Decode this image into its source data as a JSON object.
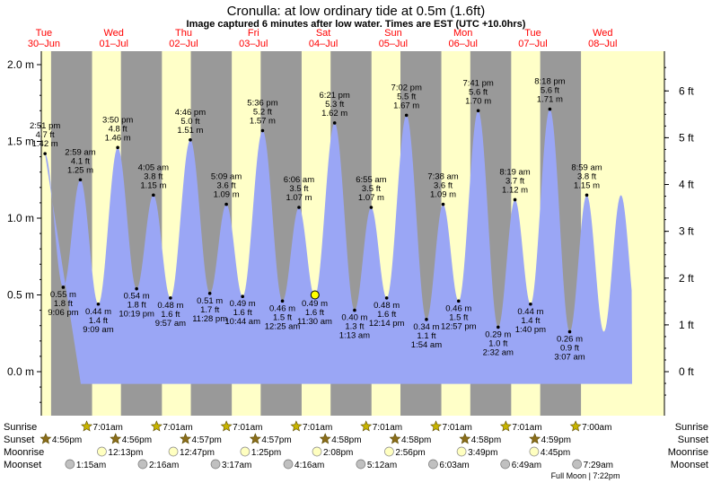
{
  "header": {
    "title": "Cronulla: at low  ordinary tide at 0.5m (1.6ft)",
    "subtitle": "Image captured 6 minutes after low water. Times are EST (UTC +10.0hrs)"
  },
  "days": [
    {
      "dow": "Tue",
      "date": "30–Jun"
    },
    {
      "dow": "Wed",
      "date": "01–Jul"
    },
    {
      "dow": "Thu",
      "date": "02–Jul"
    },
    {
      "dow": "Fri",
      "date": "03–Jul"
    },
    {
      "dow": "Sat",
      "date": "04–Jul"
    },
    {
      "dow": "Sun",
      "date": "05–Jul"
    },
    {
      "dow": "Mon",
      "date": "06–Jul"
    },
    {
      "dow": "Tue",
      "date": "07–Jul"
    },
    {
      "dow": "Wed",
      "date": "08–Jul"
    }
  ],
  "colors": {
    "day": "#ffffc8",
    "night": "#999999",
    "water": "#9aa6f5",
    "day_label": "#ff0000",
    "sun_star": "#c8b400",
    "sunset_star": "#8b6d1a",
    "moonrise": "#ffffc0",
    "moonset": "#c0c0c0",
    "marker": "#ffff00"
  },
  "chart_data": {
    "type": "area",
    "title": "Cronulla: at low  ordinary tide at 0.5m (1.6ft)",
    "xlabel": "",
    "ylabel": "",
    "y_left_unit": "m",
    "y_right_unit": "ft",
    "ylim_m": [
      -0.3,
      2.1
    ],
    "y_left_ticks": [
      "2.0 m",
      "1.5 m",
      "1.0 m",
      "0.5 m",
      "0.0 m"
    ],
    "y_left_values": [
      2.0,
      1.5,
      1.0,
      0.5,
      0.0
    ],
    "y_right_ticks": [
      "6 ft",
      "5 ft",
      "4 ft",
      "3 ft",
      "2 ft",
      "1 ft",
      "0 ft"
    ],
    "y_right_values": [
      6,
      5,
      4,
      3,
      2,
      1,
      0
    ],
    "tides": [
      {
        "day": 0,
        "time": "2:51 pm",
        "h": 1.42,
        "m": "1.42 m",
        "ft": "4.7 ft",
        "type": "high"
      },
      {
        "day": 0,
        "time": "9:06 pm",
        "h": 0.55,
        "m": "0.55 m",
        "ft": "1.8 ft",
        "type": "low"
      },
      {
        "day": 1,
        "time": "2:59 am",
        "h": 1.25,
        "m": "1.25 m",
        "ft": "4.1 ft",
        "type": "high"
      },
      {
        "day": 1,
        "time": "9:09 am",
        "h": 0.44,
        "m": "0.44 m",
        "ft": "1.4 ft",
        "type": "low"
      },
      {
        "day": 1,
        "time": "3:50 pm",
        "h": 1.46,
        "m": "1.46 m",
        "ft": "4.8 ft",
        "type": "high"
      },
      {
        "day": 1,
        "time": "10:19 pm",
        "h": 0.54,
        "m": "0.54 m",
        "ft": "1.8 ft",
        "type": "low"
      },
      {
        "day": 2,
        "time": "4:05 am",
        "h": 1.15,
        "m": "1.15 m",
        "ft": "3.8 ft",
        "type": "high"
      },
      {
        "day": 2,
        "time": "9:57 am",
        "h": 0.48,
        "m": "0.48 m",
        "ft": "1.6 ft",
        "type": "low"
      },
      {
        "day": 2,
        "time": "4:46 pm",
        "h": 1.51,
        "m": "1.51 m",
        "ft": "5.0 ft",
        "type": "high"
      },
      {
        "day": 2,
        "time": "11:28 pm",
        "h": 0.51,
        "m": "0.51 m",
        "ft": "1.7 ft",
        "type": "low"
      },
      {
        "day": 3,
        "time": "5:09 am",
        "h": 1.09,
        "m": "1.09 m",
        "ft": "3.6 ft",
        "type": "high"
      },
      {
        "day": 3,
        "time": "10:44 am",
        "h": 0.49,
        "m": "0.49 m",
        "ft": "1.6 ft",
        "type": "low"
      },
      {
        "day": 3,
        "time": "5:36 pm",
        "h": 1.57,
        "m": "1.57 m",
        "ft": "5.2 ft",
        "type": "high"
      },
      {
        "day": 4,
        "time": "12:25 am",
        "h": 0.46,
        "m": "0.46 m",
        "ft": "1.5 ft",
        "type": "low"
      },
      {
        "day": 4,
        "time": "6:06 am",
        "h": 1.07,
        "m": "1.07 m",
        "ft": "3.5 ft",
        "type": "high"
      },
      {
        "day": 4,
        "time": "11:30 am",
        "h": 0.49,
        "m": "0.49 m",
        "ft": "1.6 ft",
        "type": "low"
      },
      {
        "day": 4,
        "time": "6:21 pm",
        "h": 1.62,
        "m": "1.62 m",
        "ft": "5.3 ft",
        "type": "high"
      },
      {
        "day": 5,
        "time": "1:13 am",
        "h": 0.4,
        "m": "0.40 m",
        "ft": "1.3 ft",
        "type": "low"
      },
      {
        "day": 5,
        "time": "6:55 am",
        "h": 1.07,
        "m": "1.07 m",
        "ft": "3.5 ft",
        "type": "high"
      },
      {
        "day": 5,
        "time": "12:14 pm",
        "h": 0.48,
        "m": "0.48 m",
        "ft": "1.6 ft",
        "type": "low"
      },
      {
        "day": 5,
        "time": "7:02 pm",
        "h": 1.67,
        "m": "1.67 m",
        "ft": "5.5 ft",
        "type": "high"
      },
      {
        "day": 6,
        "time": "1:54 am",
        "h": 0.34,
        "m": "0.34 m",
        "ft": "1.1 ft",
        "type": "low"
      },
      {
        "day": 6,
        "time": "7:38 am",
        "h": 1.09,
        "m": "1.09 m",
        "ft": "3.6 ft",
        "type": "high"
      },
      {
        "day": 6,
        "time": "12:57 pm",
        "h": 0.46,
        "m": "0.46 m",
        "ft": "1.5 ft",
        "type": "low"
      },
      {
        "day": 6,
        "time": "7:41 pm",
        "h": 1.7,
        "m": "1.70 m",
        "ft": "5.6 ft",
        "type": "high"
      },
      {
        "day": 7,
        "time": "2:32 am",
        "h": 0.29,
        "m": "0.29 m",
        "ft": "1.0 ft",
        "type": "low"
      },
      {
        "day": 7,
        "time": "8:19 am",
        "h": 1.12,
        "m": "1.12 m",
        "ft": "3.7 ft",
        "type": "high"
      },
      {
        "day": 7,
        "time": "1:40 pm",
        "h": 0.44,
        "m": "0.44 m",
        "ft": "1.4 ft",
        "type": "low"
      },
      {
        "day": 7,
        "time": "8:18 pm",
        "h": 1.71,
        "m": "1.71 m",
        "ft": "5.6 ft",
        "type": "high"
      },
      {
        "day": 8,
        "time": "3:07 am",
        "h": 0.26,
        "m": "0.26 m",
        "ft": "0.9 ft",
        "type": "low"
      },
      {
        "day": 8,
        "time": "8:59 am",
        "h": 1.15,
        "m": "1.15 m",
        "ft": "3.8 ft",
        "type": "high"
      }
    ],
    "current_marker": {
      "day": 4,
      "time": "11:36 am",
      "h": 0.5
    },
    "night_spans": [
      {
        "start_day": 0,
        "start": "4:56pm",
        "end_day": 1,
        "end": "7:01am"
      },
      {
        "start_day": 1,
        "start": "4:56pm",
        "end_day": 2,
        "end": "7:01am"
      },
      {
        "start_day": 2,
        "start": "4:57pm",
        "end_day": 3,
        "end": "7:01am"
      },
      {
        "start_day": 3,
        "start": "4:57pm",
        "end_day": 4,
        "end": "7:01am"
      },
      {
        "start_day": 4,
        "start": "4:58pm",
        "end_day": 5,
        "end": "7:01am"
      },
      {
        "start_day": 5,
        "start": "4:58pm",
        "end_day": 6,
        "end": "7:01am"
      },
      {
        "start_day": 6,
        "start": "4:58pm",
        "end_day": 7,
        "end": "7:01am"
      },
      {
        "start_day": 7,
        "start": "4:59pm",
        "end_day": 8,
        "end": "7:00am"
      }
    ]
  },
  "almanac": {
    "rows": [
      {
        "label": "Sunrise",
        "kind": "sunrise",
        "events": [
          {
            "day": 1,
            "time": "7:01am"
          },
          {
            "day": 2,
            "time": "7:01am"
          },
          {
            "day": 3,
            "time": "7:01am"
          },
          {
            "day": 4,
            "time": "7:01am"
          },
          {
            "day": 5,
            "time": "7:01am"
          },
          {
            "day": 6,
            "time": "7:01am"
          },
          {
            "day": 7,
            "time": "7:01am"
          },
          {
            "day": 8,
            "time": "7:00am"
          }
        ]
      },
      {
        "label": "Sunset",
        "kind": "sunset",
        "events": [
          {
            "day": 0,
            "time": "4:56pm"
          },
          {
            "day": 1,
            "time": "4:56pm"
          },
          {
            "day": 2,
            "time": "4:57pm"
          },
          {
            "day": 3,
            "time": "4:57pm"
          },
          {
            "day": 4,
            "time": "4:58pm"
          },
          {
            "day": 5,
            "time": "4:58pm"
          },
          {
            "day": 6,
            "time": "4:58pm"
          },
          {
            "day": 7,
            "time": "4:59pm"
          }
        ]
      },
      {
        "label": "Moonrise",
        "kind": "moonrise",
        "events": [
          {
            "day": 1,
            "time": "12:13pm"
          },
          {
            "day": 2,
            "time": "12:47pm"
          },
          {
            "day": 3,
            "time": "1:25pm"
          },
          {
            "day": 4,
            "time": "2:08pm"
          },
          {
            "day": 5,
            "time": "2:56pm"
          },
          {
            "day": 6,
            "time": "3:49pm"
          },
          {
            "day": 7,
            "time": "4:45pm"
          }
        ]
      },
      {
        "label": "Moonset",
        "kind": "moonset",
        "events": [
          {
            "day": 1,
            "time": "1:15am"
          },
          {
            "day": 2,
            "time": "2:16am"
          },
          {
            "day": 3,
            "time": "3:17am"
          },
          {
            "day": 4,
            "time": "4:16am"
          },
          {
            "day": 5,
            "time": "5:12am"
          },
          {
            "day": 6,
            "time": "6:03am"
          },
          {
            "day": 7,
            "time": "6:49am"
          },
          {
            "day": 8,
            "time": "7:29am"
          }
        ]
      }
    ],
    "full_moon": "Full Moon | 7:22pm"
  }
}
